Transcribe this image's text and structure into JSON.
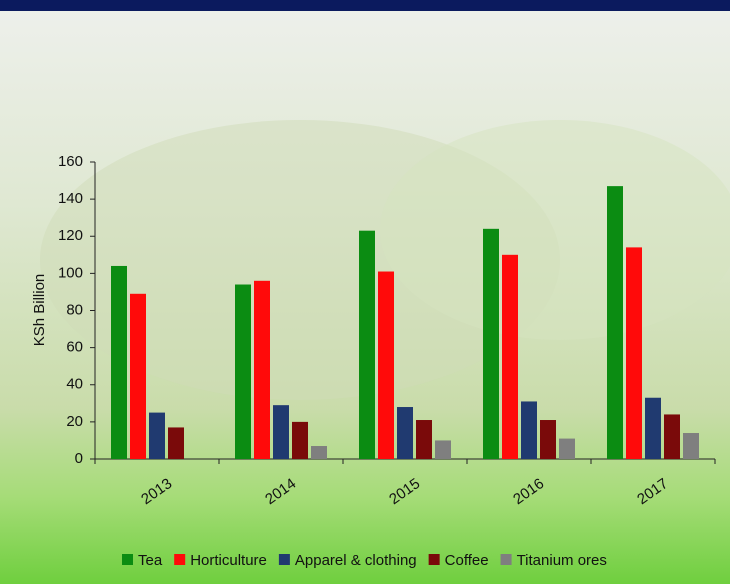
{
  "chart_data": {
    "type": "bar",
    "y_label": "KSh Billion",
    "categories": [
      "2013",
      "2014",
      "2015",
      "2016",
      "2017"
    ],
    "series": [
      {
        "name": "Tea",
        "color": "#0b8c12",
        "values": [
          104,
          94,
          123,
          124,
          147
        ]
      },
      {
        "name": "Horticulture",
        "color": "#ff0a0a",
        "values": [
          89,
          96,
          101,
          110,
          114
        ]
      },
      {
        "name": "Apparel & clothing",
        "color": "#203a70",
        "values": [
          25,
          29,
          28,
          31,
          33
        ]
      },
      {
        "name": "Coffee",
        "color": "#7a0a0a",
        "values": [
          17,
          20,
          21,
          21,
          24
        ]
      },
      {
        "name": "Titanium ores",
        "color": "#7f7f7f",
        "values": [
          null,
          7,
          10,
          11,
          14
        ]
      }
    ],
    "ylim": [
      0,
      160
    ],
    "yticks": [
      0,
      20,
      40,
      60,
      80,
      100,
      120,
      140,
      160
    ],
    "legend": "bottom"
  }
}
